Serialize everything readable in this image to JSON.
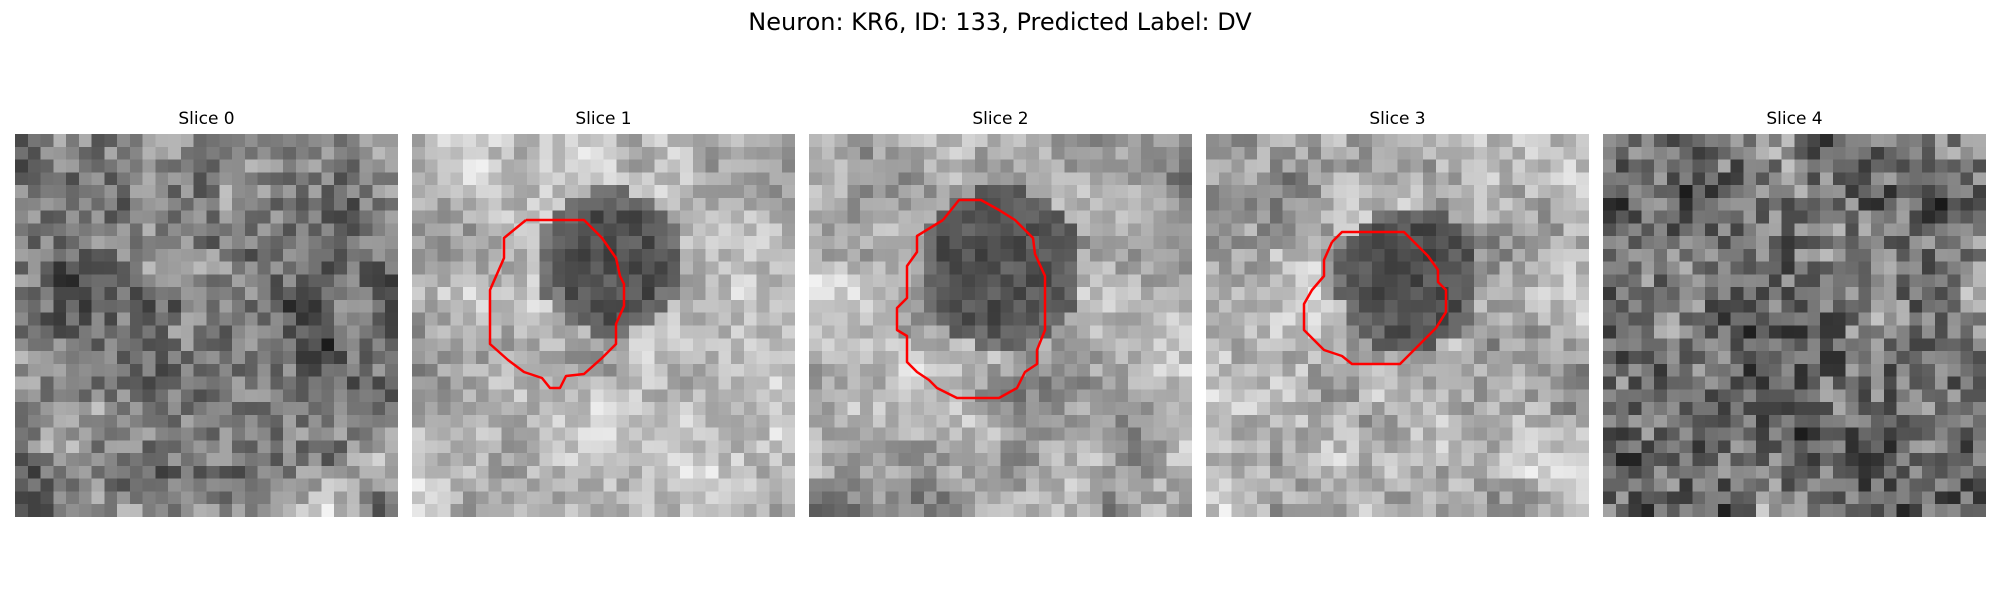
{
  "figure": {
    "title": "Neuron: KR6, ID: 133, Predicted Label: DV"
  },
  "colors": {
    "contour": "#ff0000",
    "background": "#ffffff"
  },
  "panels": [
    {
      "title": "Slice 0",
      "has_contour": false
    },
    {
      "title": "Slice 1",
      "has_contour": true
    },
    {
      "title": "Slice 2",
      "has_contour": true
    },
    {
      "title": "Slice 3",
      "has_contour": true
    },
    {
      "title": "Slice 4",
      "has_contour": false
    }
  ]
}
